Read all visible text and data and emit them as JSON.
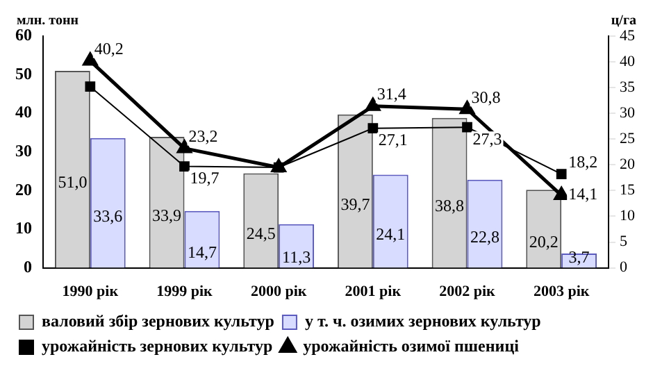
{
  "chart_data": {
    "type": "bar",
    "ylabel": "млн. тонн",
    "y2label": "ц/га",
    "categories": [
      "1990 рік",
      "1999 рік",
      "2000 рік",
      "2001 рік",
      "2002 рік",
      "2003 рік"
    ],
    "ylim": [
      0,
      60
    ],
    "yticks": [
      0,
      10,
      20,
      30,
      40,
      50,
      60
    ],
    "y2lim": [
      0,
      45
    ],
    "y2ticks": [
      0,
      5,
      10,
      15,
      20,
      25,
      30,
      35,
      40,
      45
    ],
    "grid": false,
    "legend": "bottom",
    "data_labels": true,
    "series": [
      {
        "name": "валовий збір зернових культур",
        "color": "#d4d4d4",
        "values": [
          51.0,
          33.9,
          24.5,
          39.7,
          38.8,
          20.2
        ],
        "value_labels": [
          "51,0",
          "33,9",
          "24,5",
          "39,7",
          "38,8",
          "20,2"
        ]
      },
      {
        "name": "у т. ч. озимих зернових культур",
        "color": "#d8dcff",
        "values": [
          33.6,
          14.7,
          11.3,
          24.1,
          22.8,
          3.7
        ],
        "value_labels": [
          "33,6",
          "14,7",
          "11,3",
          "24,1",
          "22,8",
          "3,7"
        ]
      },
      {
        "name": "урожайність зернових культур",
        "type": "line",
        "axis": "y2",
        "marker": "square",
        "color": "#000000",
        "values": [
          35.2,
          19.7,
          19.5,
          27.1,
          27.3,
          18.2
        ],
        "value_labels": [
          null,
          "19,7",
          null,
          "27,1",
          "27,3",
          "18,2"
        ]
      },
      {
        "name": "урожайність озимої пшениці",
        "type": "line",
        "axis": "y2",
        "marker": "triangle",
        "color": "#000000",
        "values": [
          40.2,
          23.2,
          19.5,
          31.4,
          30.8,
          14.1
        ],
        "value_labels": [
          "40,2",
          "23,2",
          null,
          "31,4",
          "30,8",
          "14,1"
        ]
      }
    ]
  }
}
